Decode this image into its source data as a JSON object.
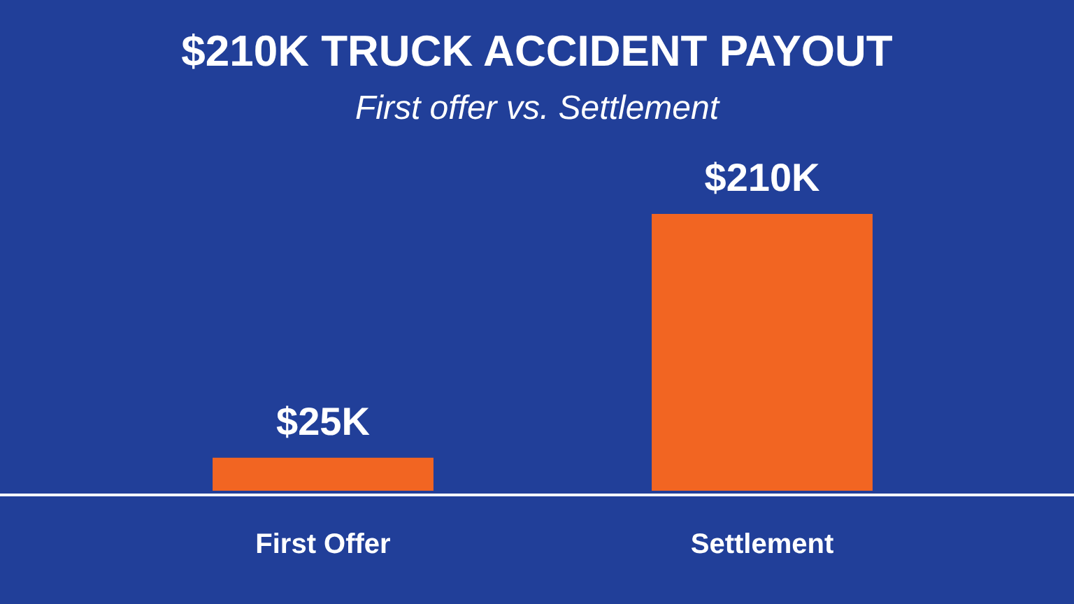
{
  "chart_data": {
    "type": "bar",
    "title": "$210K TRUCK ACCIDENT PAYOUT",
    "subtitle": "First offer vs. Settlement",
    "categories": [
      "First Offer",
      "Settlement"
    ],
    "values": [
      25,
      210
    ],
    "color": "#f26522",
    "value_labels": [
      "$25K",
      "$210K"
    ]
  }
}
